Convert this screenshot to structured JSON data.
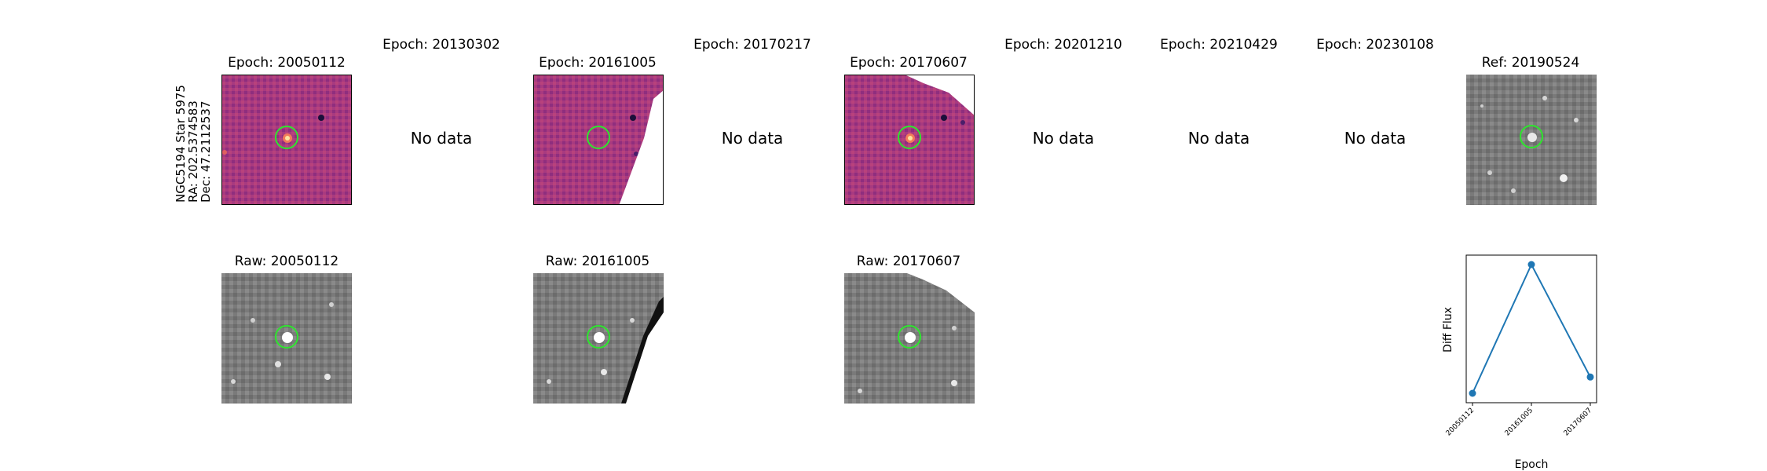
{
  "side_label": [
    "NGC5194 Star 5975",
    "RA: 202.5374583",
    "Dec: 47.2112537"
  ],
  "top_titles": [
    "Epoch: 20050112",
    "Epoch: 20130302",
    "Epoch: 20161005",
    "Epoch: 20170217",
    "Epoch: 20170607",
    "Epoch: 20201210",
    "Epoch: 20210429",
    "Epoch: 20230108",
    "Ref: 20190524"
  ],
  "no_data_text": "No data",
  "bottom_titles": [
    "Raw: 20050112",
    "Raw: 20161005",
    "Raw: 20170607"
  ],
  "colors": {
    "circle": "#2ee52e",
    "line": "#1f77b4"
  },
  "chart_data": {
    "type": "line",
    "x": [
      "20050112",
      "20161005",
      "20170607"
    ],
    "y": [
      0.05,
      1.0,
      0.17
    ],
    "ylabel": "Diff Flux",
    "xlabel": "Epoch",
    "y_tick_labels": false
  }
}
